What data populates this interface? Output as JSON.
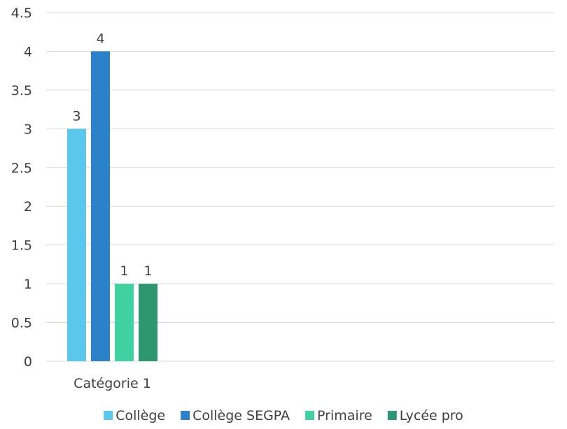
{
  "chart_data": {
    "type": "bar",
    "categories": [
      "Catégorie 1"
    ],
    "series": [
      {
        "name": "Collège",
        "values": [
          3
        ],
        "color": "#5bc7ed"
      },
      {
        "name": "Collège SEGPA",
        "values": [
          4
        ],
        "color": "#2c82c9"
      },
      {
        "name": "Primaire",
        "values": [
          1
        ],
        "color": "#3fd2a0"
      },
      {
        "name": "Lycée pro",
        "values": [
          1
        ],
        "color": "#2e9770"
      }
    ],
    "y_ticks": [
      "0",
      "0.5",
      "1",
      "1.5",
      "2",
      "2.5",
      "3",
      "3.5",
      "4",
      "4.5"
    ],
    "ylim": [
      0,
      4.5
    ],
    "grid": true,
    "data_labels": true,
    "legend_position": "bottom",
    "title": "",
    "xlabel": "",
    "ylabel": ""
  }
}
